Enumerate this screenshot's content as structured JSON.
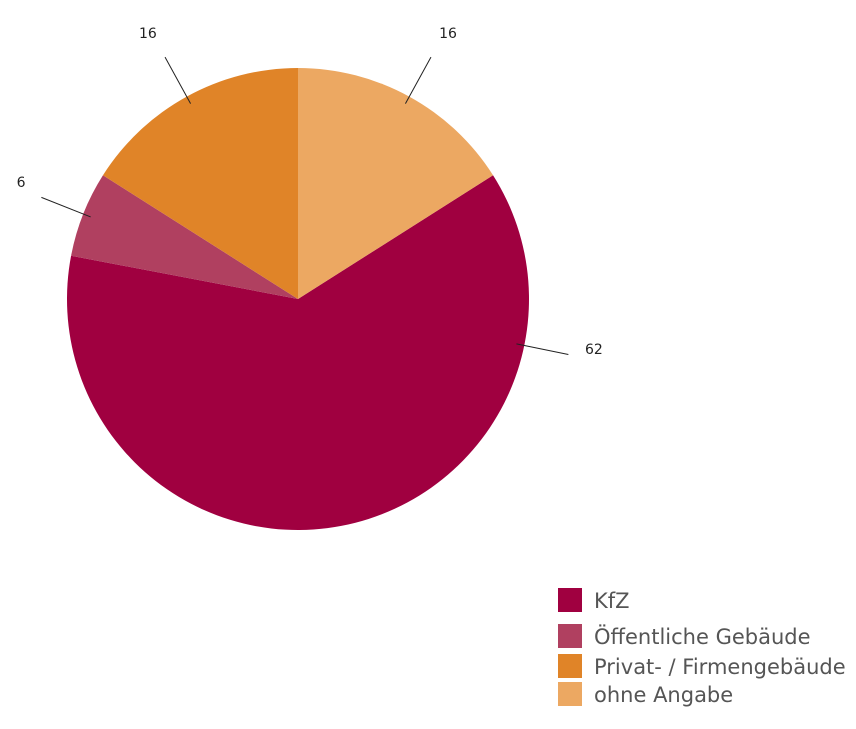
{
  "chart_data": {
    "type": "pie",
    "categories": [
      "KfZ",
      "Öffentliche Gebäude",
      "Privat- / Firmengebäude",
      "ohne Angabe"
    ],
    "values": [
      62,
      6,
      16,
      16
    ],
    "colors": [
      "#a00040",
      "#b04060",
      "#e08428",
      "#eca862"
    ],
    "legend": "bottom-right"
  }
}
